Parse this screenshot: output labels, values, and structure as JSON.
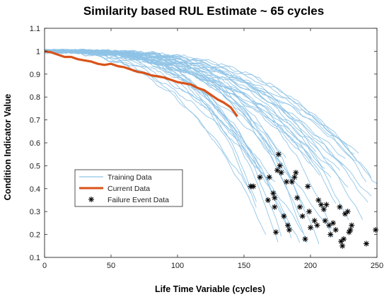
{
  "chart_data": {
    "type": "line",
    "title": "Similarity based RUL Estimate ~ 65 cycles",
    "xlabel": "Life Time Variable (cycles)",
    "ylabel": "Condition Indicator Value",
    "xlim": [
      0,
      250
    ],
    "ylim": [
      0.1,
      1.1
    ],
    "xticks": [
      0,
      50,
      100,
      150,
      200,
      250
    ],
    "yticks": [
      0.1,
      0.2,
      0.3,
      0.4,
      0.5,
      0.6,
      0.7,
      0.8,
      0.9,
      1,
      1.1
    ],
    "grid": false,
    "legend_position": "lower-left",
    "colors": {
      "training": "#8ec3e6",
      "current": "#d95319",
      "failure": "#000000"
    },
    "series": [
      {
        "name": "Training Data",
        "kind": "line-family",
        "start_value": 1.0,
        "failure_life_range": [
          155,
          250
        ],
        "curve_count": 45
      },
      {
        "name": "Current Data",
        "kind": "line",
        "x": [
          0,
          5,
          10,
          15,
          20,
          25,
          30,
          35,
          40,
          45,
          50,
          55,
          60,
          65,
          70,
          75,
          80,
          85,
          90,
          95,
          100,
          105,
          110,
          115,
          120,
          125,
          130,
          135,
          140,
          145
        ],
        "y": [
          1.0,
          0.995,
          0.985,
          0.975,
          0.975,
          0.965,
          0.96,
          0.955,
          0.945,
          0.94,
          0.945,
          0.935,
          0.93,
          0.92,
          0.91,
          0.905,
          0.895,
          0.89,
          0.885,
          0.875,
          0.865,
          0.86,
          0.855,
          0.84,
          0.83,
          0.81,
          0.79,
          0.775,
          0.755,
          0.715
        ]
      },
      {
        "name": "Failure Event Data",
        "kind": "scatter",
        "points": [
          [
            155,
            0.41
          ],
          [
            157,
            0.41
          ],
          [
            162,
            0.45
          ],
          [
            168,
            0.35
          ],
          [
            169,
            0.45
          ],
          [
            172,
            0.38
          ],
          [
            173,
            0.36
          ],
          [
            173,
            0.32
          ],
          [
            174,
            0.21
          ],
          [
            175,
            0.48
          ],
          [
            176,
            0.55
          ],
          [
            177,
            0.5
          ],
          [
            178,
            0.47
          ],
          [
            180,
            0.28
          ],
          [
            182,
            0.43
          ],
          [
            183,
            0.24
          ],
          [
            184,
            0.22
          ],
          [
            186,
            0.43
          ],
          [
            188,
            0.45
          ],
          [
            189,
            0.47
          ],
          [
            190,
            0.36
          ],
          [
            192,
            0.32
          ],
          [
            194,
            0.28
          ],
          [
            196,
            0.18
          ],
          [
            198,
            0.41
          ],
          [
            199,
            0.3
          ],
          [
            200,
            0.23
          ],
          [
            203,
            0.26
          ],
          [
            205,
            0.24
          ],
          [
            206,
            0.35
          ],
          [
            208,
            0.33
          ],
          [
            210,
            0.31
          ],
          [
            211,
            0.26
          ],
          [
            212,
            0.33
          ],
          [
            214,
            0.24
          ],
          [
            215,
            0.2
          ],
          [
            217,
            0.25
          ],
          [
            219,
            0.22
          ],
          [
            222,
            0.32
          ],
          [
            223,
            0.17
          ],
          [
            224,
            0.15
          ],
          [
            225,
            0.18
          ],
          [
            226,
            0.29
          ],
          [
            228,
            0.3
          ],
          [
            229,
            0.21
          ],
          [
            230,
            0.22
          ],
          [
            231,
            0.24
          ],
          [
            242,
            0.16
          ],
          [
            249,
            0.22
          ]
        ]
      }
    ],
    "legend": [
      {
        "label": "Training Data",
        "marker": "line",
        "color": "#8ec3e6"
      },
      {
        "label": "Current Data",
        "marker": "thick-line",
        "color": "#d95319"
      },
      {
        "label": "Failure Event Data",
        "marker": "asterisk",
        "color": "#000000"
      }
    ]
  }
}
